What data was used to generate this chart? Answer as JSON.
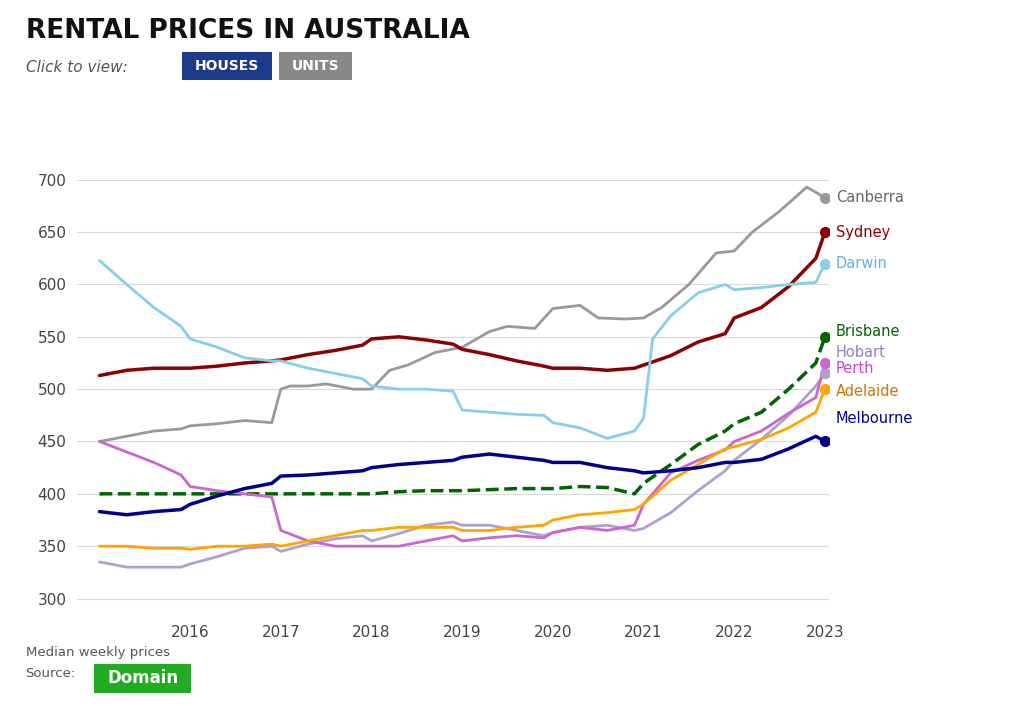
{
  "title": "RENTAL PRICES IN AUSTRALIA",
  "subtitle_click": "Click to view:",
  "subtitle_houses": "HOUSES",
  "subtitle_units": "UNITS",
  "ylim": [
    285,
    720
  ],
  "yticks": [
    300,
    350,
    400,
    450,
    500,
    550,
    600,
    650,
    700
  ],
  "xticks": [
    2016,
    2017,
    2018,
    2019,
    2020,
    2021,
    2022,
    2023
  ],
  "background_color": "#ffffff",
  "grid_color": "#d8d8d8",
  "footnote1": "Median weekly prices",
  "footnote2": "Source:",
  "domain_label": "Domain",
  "houses_bg": "#1e3a8a",
  "units_bg": "#888888",
  "domain_bg": "#22aa22",
  "series": {
    "Canberra": {
      "color": "#999999",
      "linewidth": 2.0,
      "style": "solid",
      "label_color": "#666666",
      "data_x": [
        2015.0,
        2015.3,
        2015.6,
        2015.9,
        2016.0,
        2016.3,
        2016.6,
        2016.9,
        2017.0,
        2017.1,
        2017.3,
        2017.5,
        2017.8,
        2018.0,
        2018.2,
        2018.4,
        2018.7,
        2019.0,
        2019.3,
        2019.5,
        2019.8,
        2020.0,
        2020.3,
        2020.5,
        2020.8,
        2021.0,
        2021.2,
        2021.5,
        2021.8,
        2022.0,
        2022.2,
        2022.5,
        2022.8,
        2023.0
      ],
      "data_y": [
        450,
        455,
        460,
        462,
        465,
        467,
        470,
        468,
        500,
        503,
        503,
        505,
        500,
        500,
        518,
        523,
        535,
        540,
        555,
        560,
        558,
        577,
        580,
        568,
        567,
        568,
        578,
        600,
        630,
        632,
        650,
        670,
        693,
        683
      ]
    },
    "Sydney": {
      "color": "#8b0000",
      "linewidth": 2.5,
      "style": "solid",
      "label_color": "#8b0000",
      "data_x": [
        2015.0,
        2015.3,
        2015.6,
        2015.9,
        2016.0,
        2016.3,
        2016.6,
        2016.9,
        2017.0,
        2017.3,
        2017.6,
        2017.9,
        2018.0,
        2018.3,
        2018.6,
        2018.9,
        2019.0,
        2019.3,
        2019.6,
        2019.9,
        2020.0,
        2020.3,
        2020.6,
        2020.9,
        2021.0,
        2021.3,
        2021.6,
        2021.9,
        2022.0,
        2022.3,
        2022.6,
        2022.9,
        2023.0
      ],
      "data_y": [
        513,
        518,
        520,
        520,
        520,
        522,
        525,
        527,
        528,
        533,
        537,
        542,
        548,
        550,
        547,
        543,
        538,
        533,
        527,
        522,
        520,
        520,
        518,
        520,
        523,
        532,
        545,
        553,
        568,
        578,
        598,
        625,
        650
      ]
    },
    "Darwin": {
      "color": "#87ceeb",
      "linewidth": 2.0,
      "style": "solid",
      "label_color": "#5ab4e0",
      "data_x": [
        2015.0,
        2015.3,
        2015.6,
        2015.9,
        2016.0,
        2016.3,
        2016.6,
        2016.9,
        2017.0,
        2017.3,
        2017.6,
        2017.9,
        2018.0,
        2018.3,
        2018.6,
        2018.9,
        2019.0,
        2019.3,
        2019.6,
        2019.9,
        2020.0,
        2020.3,
        2020.6,
        2020.9,
        2021.0,
        2021.1,
        2021.3,
        2021.6,
        2021.9,
        2022.0,
        2022.3,
        2022.6,
        2022.9,
        2023.0
      ],
      "data_y": [
        623,
        600,
        578,
        560,
        548,
        540,
        530,
        527,
        527,
        520,
        515,
        510,
        503,
        500,
        500,
        498,
        480,
        478,
        476,
        475,
        468,
        463,
        453,
        460,
        472,
        548,
        570,
        592,
        600,
        595,
        597,
        600,
        602,
        620
      ]
    },
    "Brisbane": {
      "color": "#006400",
      "linewidth": 2.5,
      "style": "dashed",
      "label_color": "#006400",
      "data_x": [
        2015.0,
        2015.3,
        2015.6,
        2015.9,
        2016.0,
        2016.3,
        2016.6,
        2016.9,
        2017.0,
        2017.3,
        2017.6,
        2017.9,
        2018.0,
        2018.3,
        2018.6,
        2018.9,
        2019.0,
        2019.3,
        2019.6,
        2019.9,
        2020.0,
        2020.3,
        2020.6,
        2020.9,
        2021.0,
        2021.3,
        2021.6,
        2021.9,
        2022.0,
        2022.3,
        2022.6,
        2022.9,
        2023.0
      ],
      "data_y": [
        400,
        400,
        400,
        400,
        400,
        400,
        400,
        400,
        400,
        400,
        400,
        400,
        400,
        402,
        403,
        403,
        403,
        404,
        405,
        405,
        405,
        407,
        406,
        400,
        410,
        428,
        447,
        460,
        467,
        478,
        500,
        525,
        550
      ]
    },
    "Hobart": {
      "color": "#b0a0d0",
      "linewidth": 2.0,
      "style": "solid",
      "label_color": "#9080c0",
      "data_x": [
        2015.0,
        2015.3,
        2015.6,
        2015.9,
        2016.0,
        2016.3,
        2016.6,
        2016.9,
        2017.0,
        2017.3,
        2017.6,
        2017.9,
        2018.0,
        2018.3,
        2018.6,
        2018.9,
        2019.0,
        2019.3,
        2019.6,
        2019.9,
        2020.0,
        2020.3,
        2020.6,
        2020.9,
        2021.0,
        2021.3,
        2021.6,
        2021.9,
        2022.0,
        2022.3,
        2022.6,
        2022.9,
        2023.0
      ],
      "data_y": [
        335,
        330,
        330,
        330,
        333,
        340,
        348,
        350,
        345,
        352,
        357,
        360,
        355,
        362,
        370,
        373,
        370,
        370,
        365,
        360,
        363,
        368,
        370,
        365,
        367,
        382,
        403,
        422,
        432,
        452,
        475,
        503,
        515
      ]
    },
    "Perth": {
      "color": "#cc66cc",
      "linewidth": 2.0,
      "style": "solid",
      "label_color": "#cc44cc",
      "data_x": [
        2015.0,
        2015.3,
        2015.6,
        2015.9,
        2016.0,
        2016.3,
        2016.6,
        2016.9,
        2017.0,
        2017.3,
        2017.6,
        2017.9,
        2018.0,
        2018.3,
        2018.6,
        2018.9,
        2019.0,
        2019.3,
        2019.6,
        2019.9,
        2020.0,
        2020.3,
        2020.6,
        2020.9,
        2021.0,
        2021.3,
        2021.6,
        2021.9,
        2022.0,
        2022.3,
        2022.6,
        2022.9,
        2023.0
      ],
      "data_y": [
        450,
        440,
        430,
        418,
        407,
        403,
        400,
        397,
        365,
        355,
        350,
        350,
        350,
        350,
        355,
        360,
        355,
        358,
        360,
        358,
        363,
        368,
        365,
        370,
        390,
        420,
        432,
        442,
        450,
        460,
        477,
        492,
        525
      ]
    },
    "Adelaide": {
      "color": "#ffa500",
      "linewidth": 2.0,
      "style": "solid",
      "label_color": "#cc7700",
      "data_x": [
        2015.0,
        2015.3,
        2015.6,
        2015.9,
        2016.0,
        2016.3,
        2016.6,
        2016.9,
        2017.0,
        2017.3,
        2017.6,
        2017.9,
        2018.0,
        2018.3,
        2018.6,
        2018.9,
        2019.0,
        2019.3,
        2019.6,
        2019.9,
        2020.0,
        2020.3,
        2020.6,
        2020.9,
        2021.0,
        2021.3,
        2021.6,
        2021.9,
        2022.0,
        2022.3,
        2022.6,
        2022.9,
        2023.0
      ],
      "data_y": [
        350,
        350,
        348,
        348,
        347,
        350,
        350,
        352,
        350,
        355,
        360,
        365,
        365,
        368,
        368,
        368,
        365,
        365,
        368,
        370,
        375,
        380,
        382,
        385,
        390,
        413,
        428,
        443,
        445,
        452,
        463,
        478,
        500
      ]
    },
    "Melbourne": {
      "color": "#00008b",
      "linewidth": 2.5,
      "style": "solid",
      "label_color": "#00008b",
      "data_x": [
        2015.0,
        2015.3,
        2015.6,
        2015.9,
        2016.0,
        2016.3,
        2016.6,
        2016.9,
        2017.0,
        2017.3,
        2017.6,
        2017.9,
        2018.0,
        2018.3,
        2018.6,
        2018.9,
        2019.0,
        2019.3,
        2019.6,
        2019.9,
        2020.0,
        2020.3,
        2020.6,
        2020.9,
        2021.0,
        2021.3,
        2021.6,
        2021.9,
        2022.0,
        2022.3,
        2022.6,
        2022.9,
        2023.0
      ],
      "data_y": [
        383,
        380,
        383,
        385,
        390,
        398,
        405,
        410,
        417,
        418,
        420,
        422,
        425,
        428,
        430,
        432,
        435,
        438,
        435,
        432,
        430,
        430,
        425,
        422,
        420,
        422,
        425,
        430,
        430,
        433,
        443,
        455,
        450
      ]
    }
  },
  "label_positions": {
    "Canberra": [
      683,
      "#666666"
    ],
    "Sydney": [
      650,
      "#8b0000"
    ],
    "Darwin": [
      620,
      "#5ab4e0"
    ],
    "Brisbane": [
      555,
      "#006400"
    ],
    "Hobart": [
      535,
      "#9080c0"
    ],
    "Perth": [
      520,
      "#cc44cc"
    ],
    "Adelaide": [
      498,
      "#cc7700"
    ],
    "Melbourne": [
      472,
      "#00008b"
    ]
  }
}
